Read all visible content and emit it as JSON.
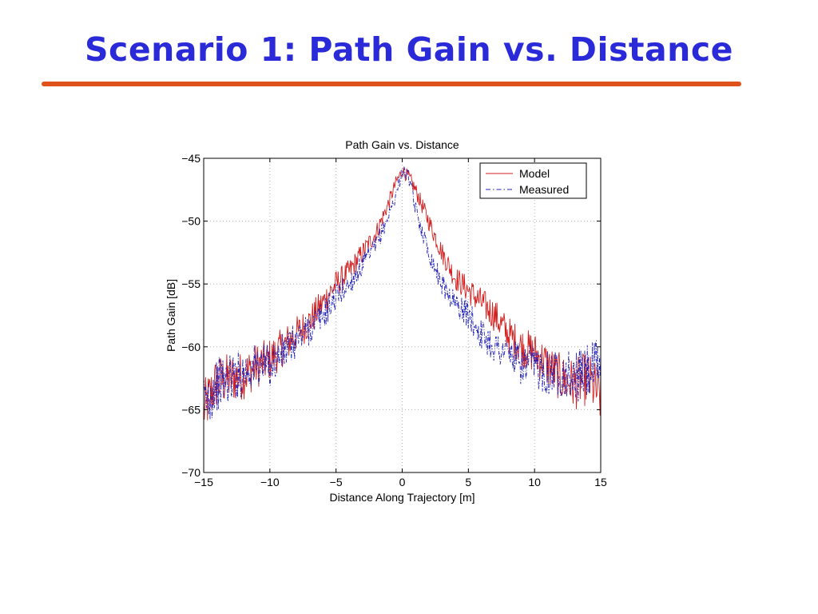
{
  "slide": {
    "title": "Scenario 1: Path Gain vs. Distance",
    "title_color": "#2a2ad8",
    "rule_color": "#e0521c"
  },
  "chart_data": {
    "type": "line",
    "title": "Path Gain vs. Distance",
    "xlabel": "Distance Along Trajectory [m]",
    "ylabel": "Path Gain [dB]",
    "xlim": [
      -15,
      15
    ],
    "ylim": [
      -70,
      -45
    ],
    "xticks": [
      -15,
      -10,
      -5,
      0,
      5,
      10,
      15
    ],
    "yticks": [
      -70,
      -65,
      -60,
      -55,
      -50,
      -45
    ],
    "xtick_labels": [
      "−15",
      "−10",
      "−5",
      "0",
      "5",
      "10",
      "15"
    ],
    "ytick_labels": [
      "−70",
      "−65",
      "−60",
      "−55",
      "−50",
      "−45"
    ],
    "grid": true,
    "legend_position": "top-right",
    "series": [
      {
        "name": "Model",
        "color": "#d02020",
        "style": "solid",
        "x": [
          -15,
          -14,
          -13,
          -12,
          -11,
          -10,
          -9,
          -8,
          -7,
          -6,
          -5,
          -4,
          -3,
          -2,
          -1,
          -0.5,
          0,
          0.5,
          1,
          2,
          3,
          4,
          5,
          6,
          7,
          8,
          9,
          10,
          11,
          12,
          13,
          14,
          15
        ],
        "y": [
          -65,
          -62.8,
          -62.5,
          -62.3,
          -61.5,
          -61,
          -60,
          -59,
          -58,
          -56.5,
          -55,
          -54,
          -52.5,
          -51,
          -48.5,
          -47,
          -46,
          -46.5,
          -47.5,
          -50,
          -52.5,
          -54.5,
          -55.5,
          -56.5,
          -57.5,
          -59,
          -60,
          -60.5,
          -61.5,
          -62.5,
          -63,
          -62.5,
          -64
        ]
      },
      {
        "name": "Measured",
        "color": "#2020b8",
        "style": "dash-dot",
        "x": [
          -15,
          -14,
          -13,
          -12,
          -11,
          -10,
          -9,
          -8,
          -7,
          -6,
          -5,
          -4,
          -3,
          -2,
          -1,
          -0.5,
          0,
          0.5,
          1,
          2,
          3,
          4,
          5,
          6,
          7,
          8,
          9,
          10,
          11,
          12,
          13,
          14,
          15
        ],
        "y": [
          -64.5,
          -63,
          -62.5,
          -62,
          -61.5,
          -61.5,
          -60.5,
          -59.5,
          -58.5,
          -57.5,
          -56,
          -55,
          -53.5,
          -52,
          -49.5,
          -48,
          -46,
          -46.5,
          -49,
          -52.5,
          -55,
          -56.5,
          -57.5,
          -59,
          -60,
          -60.5,
          -61.5,
          -61.5,
          -62,
          -62,
          -62.5,
          -62,
          -61.5
        ]
      }
    ]
  }
}
